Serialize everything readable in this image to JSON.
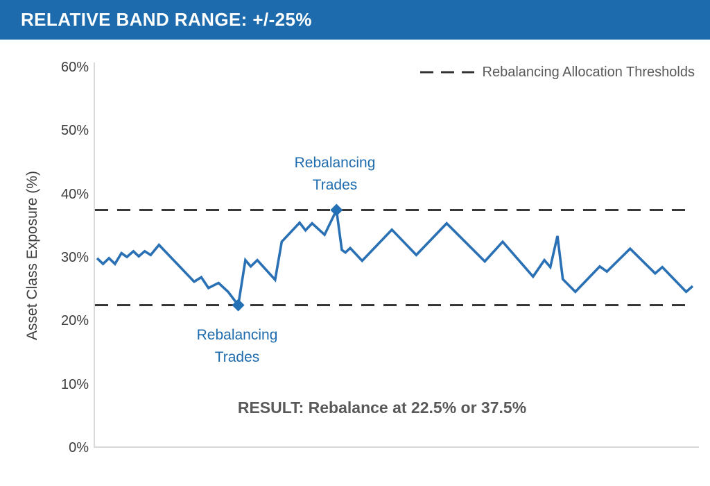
{
  "header": {
    "title": "RELATIVE BAND RANGE: +/-25%"
  },
  "legend": {
    "label": "Rebalancing Allocation Thresholds"
  },
  "annotations": {
    "upper_trade": {
      "line1": "Rebalancing",
      "line2": "Trades"
    },
    "lower_trade": {
      "line1": "Rebalancing",
      "line2": "Trades"
    },
    "result": "RESULT: Rebalance at 22.5% or 37.5%"
  },
  "colors": {
    "header_bg": "#1d6bad",
    "header_text": "#ffffff",
    "series_line": "#2a70b4",
    "marker_fill": "#2470b4",
    "annotation_text": "#1d6bad",
    "result_text": "#595959",
    "legend_text": "#595959",
    "tick_text": "#3d3d3d",
    "axis_line": "#d9d9d9",
    "threshold_dash": "#262626",
    "legend_dash": "#333333"
  },
  "chart_data": {
    "type": "line",
    "title": "",
    "xlabel": "",
    "ylabel": "Asset Class Exposure (%)",
    "ylim": [
      0,
      60
    ],
    "yticks": [
      0,
      10,
      20,
      30,
      40,
      50,
      60
    ],
    "ytick_labels": [
      "0%",
      "10%",
      "20%",
      "30%",
      "40%",
      "50%",
      "60%"
    ],
    "xlim": [
      0,
      100
    ],
    "x_axis_labels": "none",
    "grid": false,
    "legend_position": "top-right",
    "thresholds": {
      "upper": 37.5,
      "lower": 22.5,
      "style": "dashed",
      "label": "Rebalancing Allocation Thresholds"
    },
    "series": [
      {
        "name": "Asset Class Exposure",
        "x": [
          0,
          1,
          2,
          3,
          4.1,
          5,
          6.1,
          7,
          8,
          9,
          10.4,
          16.3,
          17.5,
          18.7,
          20.4,
          22,
          23.7,
          24.9,
          25.8,
          26.9,
          29.9,
          31,
          34,
          35,
          36.1,
          38.2,
          40.2,
          41.1,
          41.7,
          42.5,
          44.5,
          49.5,
          53.6,
          58.7,
          65.1,
          68.1,
          73.2,
          75.1,
          76.1,
          77.3,
          78.2,
          80.3,
          84.4,
          85.6,
          89.5,
          93.7,
          94.9,
          98.9,
          100
        ],
        "y": [
          29.9,
          29.0,
          29.9,
          29.0,
          30.7,
          30.1,
          31.0,
          30.2,
          31.0,
          30.4,
          32.0,
          26.2,
          26.9,
          25.2,
          26.0,
          24.6,
          22.5,
          29.6,
          28.6,
          29.6,
          26.5,
          32.5,
          35.5,
          34.3,
          35.4,
          33.6,
          37.5,
          31.2,
          30.8,
          31.5,
          29.5,
          34.4,
          30.4,
          35.4,
          29.4,
          32.5,
          27.0,
          29.6,
          28.5,
          33.4,
          26.6,
          24.6,
          28.6,
          27.8,
          31.4,
          27.5,
          28.5,
          24.6,
          25.5
        ]
      }
    ],
    "markers": [
      {
        "x": 23.7,
        "y": 22.5,
        "shape": "diamond",
        "label": "Rebalancing Trades"
      },
      {
        "x": 40.2,
        "y": 37.5,
        "shape": "diamond",
        "label": "Rebalancing Trades"
      }
    ]
  }
}
